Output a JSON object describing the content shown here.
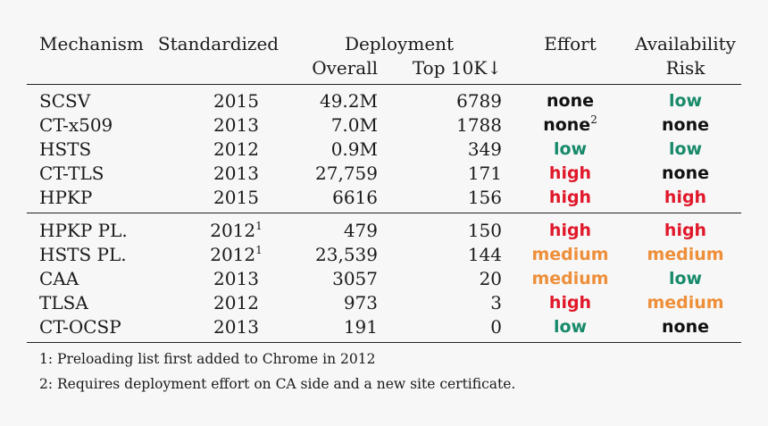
{
  "header": {
    "mechanism": "Mechanism",
    "standardized": "Standardized",
    "deployment": "Deployment",
    "overall": "Overall",
    "top10k": "Top 10K↓",
    "effort": "Effort",
    "availability_line1": "Availability",
    "availability_line2": "Risk"
  },
  "group1": [
    {
      "mechanism": "SCSV",
      "year": "2015",
      "year_note": "",
      "overall": "49.2M",
      "top10k": "6789",
      "effort": "none",
      "effort_note": "",
      "risk": "low"
    },
    {
      "mechanism": "CT-x509",
      "year": "2013",
      "year_note": "",
      "overall": "7.0M",
      "top10k": "1788",
      "effort": "none",
      "effort_note": "2",
      "risk": "none"
    },
    {
      "mechanism": "HSTS",
      "year": "2012",
      "year_note": "",
      "overall": "0.9M",
      "top10k": "349",
      "effort": "low",
      "effort_note": "",
      "risk": "low"
    },
    {
      "mechanism": "CT-TLS",
      "year": "2013",
      "year_note": "",
      "overall": "27,759",
      "top10k": "171",
      "effort": "high",
      "effort_note": "",
      "risk": "none"
    },
    {
      "mechanism": "HPKP",
      "year": "2015",
      "year_note": "",
      "overall": "6616",
      "top10k": "156",
      "effort": "high",
      "effort_note": "",
      "risk": "high"
    }
  ],
  "group2": [
    {
      "mechanism": "HPKP PL.",
      "year": "2012",
      "year_note": "1",
      "overall": "479",
      "top10k": "150",
      "effort": "high",
      "effort_note": "",
      "risk": "high"
    },
    {
      "mechanism": "HSTS PL.",
      "year": "2012",
      "year_note": "1",
      "overall": "23,539",
      "top10k": "144",
      "effort": "medium",
      "effort_note": "",
      "risk": "medium"
    },
    {
      "mechanism": "CAA",
      "year": "2013",
      "year_note": "",
      "overall": "3057",
      "top10k": "20",
      "effort": "medium",
      "effort_note": "",
      "risk": "low"
    },
    {
      "mechanism": "TLSA",
      "year": "2012",
      "year_note": "",
      "overall": "973",
      "top10k": "3",
      "effort": "high",
      "effort_note": "",
      "risk": "medium"
    },
    {
      "mechanism": "CT-OCSP",
      "year": "2013",
      "year_note": "",
      "overall": "191",
      "top10k": "0",
      "effort": "low",
      "effort_note": "",
      "risk": "none"
    }
  ],
  "footnotes": [
    "1: Preloading list first added to Chrome in 2012",
    "2: Requires deployment effort on CA side and a new site certificate."
  ],
  "colors": {
    "none": "#111111",
    "low": "#178a6a",
    "medium": "#ee8f3a",
    "high": "#e0182a"
  }
}
